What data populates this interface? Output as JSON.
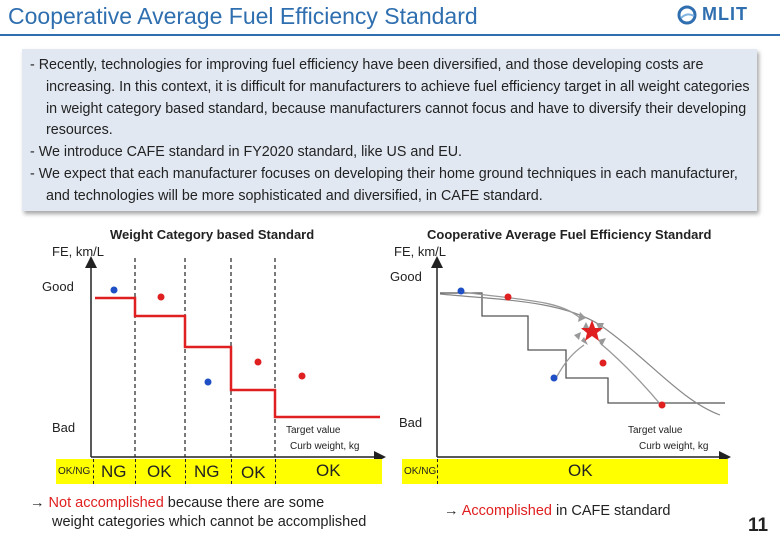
{
  "header": {
    "title": "Cooperative Average Fuel Efficiency Standard",
    "logo_text": "MLIT"
  },
  "intro": {
    "bullets": [
      "- Recently, technologies for improving fuel efficiency have been diversified, and those developing costs are increasing.  In this context, it is difficult for manufacturers to achieve fuel efficiency target in all weight categories in weight category based standard, because manufacturers cannot focus and have to diversify their developing resources.",
      "- We introduce CAFE standard in FY2020 standard, like US and EU.",
      "- We expect that each manufacturer focuses on developing their home ground techniques in each manufacturer, and technologies will be more sophisticated and diversified, in CAFE standard."
    ]
  },
  "left_diagram": {
    "title": "Weight Category based Standard",
    "y_axis": "FE, km/L",
    "good": "Good",
    "bad": "Bad",
    "target_value": "Target value",
    "x_axis": "Curb weight, kg",
    "okng_label": "OK/NG",
    "statuses": [
      "NG",
      "OK",
      "NG",
      "OK",
      "OK"
    ],
    "conclusion_arrow": "→ ",
    "conclusion_red": "Not accomplished",
    "conclusion_rest": " because there are some",
    "conclusion_line2": "weight categories which cannot be accomplished"
  },
  "right_diagram": {
    "title": "Cooperative Average Fuel Efficiency Standard",
    "y_axis": "FE, km/L",
    "good": "Good",
    "bad": "Bad",
    "target_value": "Target value",
    "x_axis": "Curb weight, kg",
    "okng_label": "OK/NG",
    "status": "OK",
    "conclusion_arrow": "→ ",
    "conclusion_red": "Accomplished",
    "conclusion_rest": " in CAFE standard"
  },
  "colors": {
    "title_blue": "#2f6fb0",
    "box_bg": "#e1e8f2",
    "status_yellow": "#ffff00",
    "red_dot": "#e02020",
    "blue_dot": "#1f4fc4",
    "target_red": "#e02020"
  },
  "page_number": "11"
}
